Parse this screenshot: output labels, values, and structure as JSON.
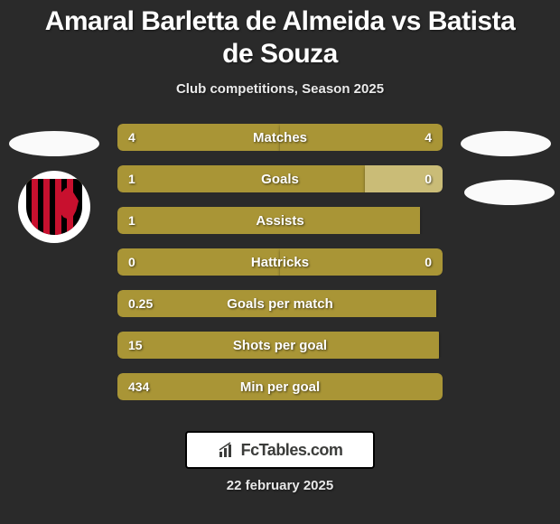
{
  "type": "comparison-infographic",
  "background_color": "#2a2a2a",
  "bar_color": "#a99536",
  "goals_right_segment_color": "#cabc77",
  "text_color": "#ffffff",
  "ellipse_color": "#fafafa",
  "title": "Amaral Barletta de Almeida vs Batista de Souza",
  "title_fontsize": 30,
  "subtitle": "Club competitions, Season 2025",
  "subtitle_fontsize": 15,
  "rows": [
    {
      "label": "Matches",
      "left": "4",
      "right": "4",
      "left_width_pct": 50,
      "right_width_pct": 50
    },
    {
      "label": "Goals",
      "left": "1",
      "right": "0",
      "left_width_pct": 76,
      "right_width_pct": 24,
      "right_color": "#cabc77"
    },
    {
      "label": "Assists",
      "left": "1",
      "right": "",
      "left_width_pct": 93,
      "right_width_pct": 0
    },
    {
      "label": "Hattricks",
      "left": "0",
      "right": "0",
      "left_width_pct": 50,
      "right_width_pct": 50
    },
    {
      "label": "Goals per match",
      "left": "0.25",
      "right": "",
      "left_width_pct": 98,
      "right_width_pct": 0
    },
    {
      "label": "Shots per goal",
      "left": "15",
      "right": "",
      "left_width_pct": 99,
      "right_width_pct": 0
    },
    {
      "label": "Min per goal",
      "left": "434",
      "right": "",
      "left_width_pct": 100,
      "right_width_pct": 0
    }
  ],
  "footer": {
    "brand": "FcTables.com",
    "date": "22 february 2025"
  },
  "club_badge": {
    "bg": "#ffffff",
    "shield_bg": "#000000",
    "stripe_color": "#c8102e",
    "star_color": "#f0c000"
  }
}
